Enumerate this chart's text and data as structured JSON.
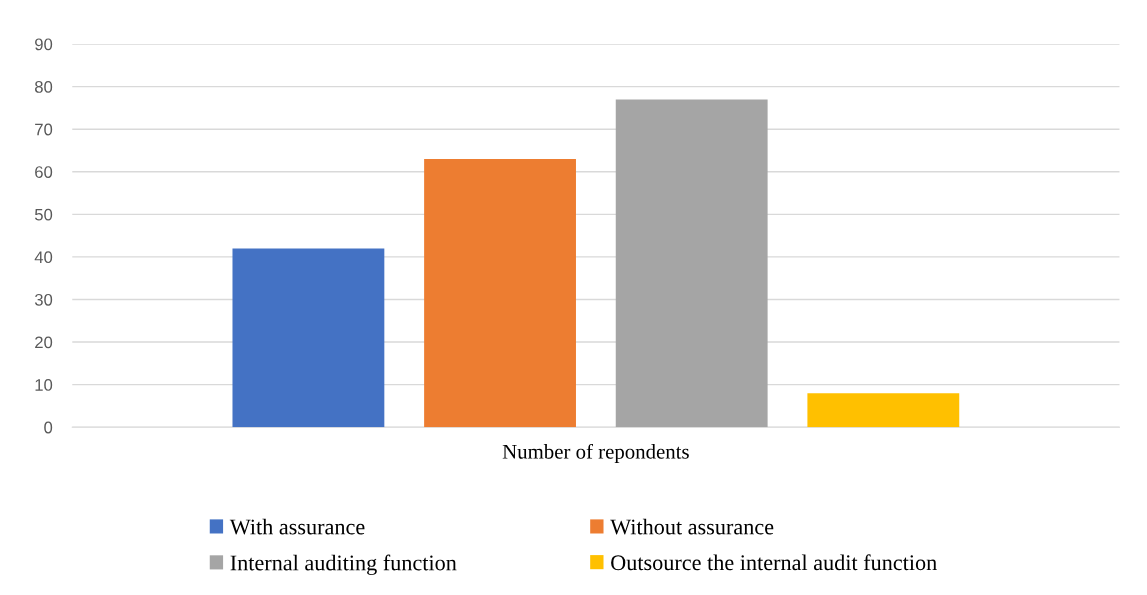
{
  "chart_data": {
    "type": "bar",
    "categories": [
      "Number of repondents"
    ],
    "series": [
      {
        "name": "With assurance",
        "color": "#4472c4",
        "values": [
          42
        ]
      },
      {
        "name": "Without assurance",
        "color": "#ed7d31",
        "values": [
          63
        ]
      },
      {
        "name": "Internal auditing function",
        "color": "#a5a5a5",
        "values": [
          77
        ]
      },
      {
        "name": "Outsource the internal audit function",
        "color": "#ffc000",
        "values": [
          8
        ]
      }
    ],
    "ylim": [
      0,
      90
    ],
    "yticks": [
      0,
      10,
      20,
      30,
      40,
      50,
      60,
      70,
      80,
      90
    ],
    "grid": "y",
    "legend": "bottom"
  }
}
